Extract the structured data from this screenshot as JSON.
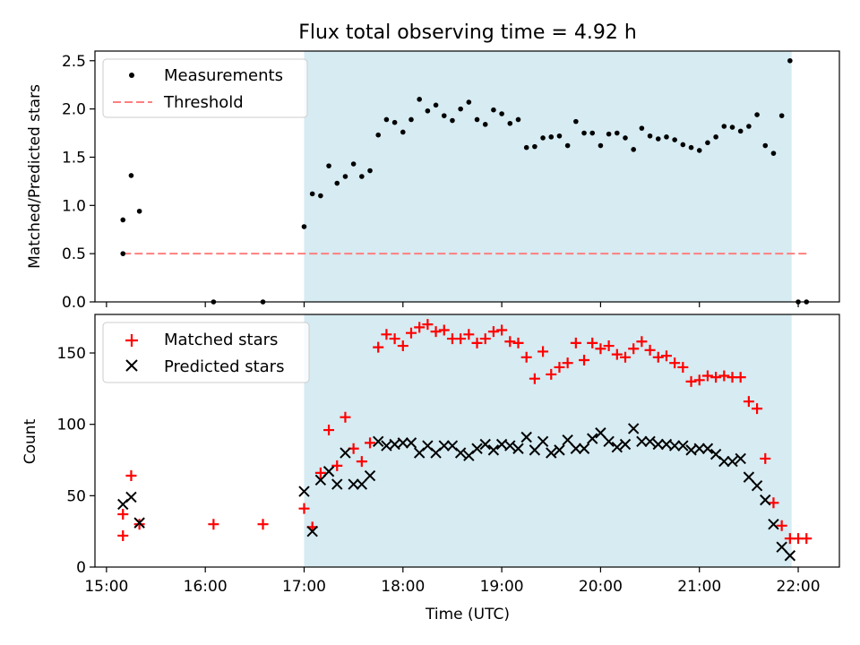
{
  "title": "Flux total observing time = 4.92 h",
  "shaded_color": "#add8e6",
  "chart_data": [
    {
      "type": "scatter",
      "ylabel": "Matched/Predicted stars",
      "ylim": [
        0,
        2.6
      ],
      "yticks": [
        0,
        0.5,
        1.0,
        1.5,
        2.0,
        2.5
      ],
      "ytick_labels": [
        "0.0",
        "0.5",
        "1.0",
        "1.5",
        "2.0",
        "2.5"
      ],
      "xlim": [
        "14:53",
        "22:25"
      ],
      "shaded_interval": [
        "17:00",
        "21:56"
      ],
      "legend": {
        "position": "top-left",
        "entries": [
          "Measurements",
          "Threshold"
        ]
      },
      "threshold": {
        "name": "Threshold",
        "value": 0.5,
        "x_range": [
          "15:10",
          "22:05"
        ],
        "color": "#ff7f7f",
        "style": "dashed"
      },
      "series": [
        {
          "name": "Measurements",
          "color": "#000000",
          "marker": "dot",
          "x": [
            "15:10",
            "15:10",
            "15:15",
            "15:20",
            "16:05",
            "16:35",
            "17:00",
            "17:05",
            "17:10",
            "17:15",
            "17:20",
            "17:25",
            "17:30",
            "17:35",
            "17:40",
            "17:45",
            "17:50",
            "17:55",
            "18:00",
            "18:05",
            "18:10",
            "18:15",
            "18:20",
            "18:25",
            "18:30",
            "18:35",
            "18:40",
            "18:45",
            "18:50",
            "18:55",
            "19:00",
            "19:05",
            "19:10",
            "19:15",
            "19:20",
            "19:25",
            "19:30",
            "19:35",
            "19:40",
            "19:45",
            "19:50",
            "19:55",
            "20:00",
            "20:05",
            "20:10",
            "20:15",
            "20:20",
            "20:25",
            "20:30",
            "20:35",
            "20:40",
            "20:45",
            "20:50",
            "20:55",
            "21:00",
            "21:05",
            "21:10",
            "21:15",
            "21:20",
            "21:25",
            "21:30",
            "21:35",
            "21:40",
            "21:45",
            "21:50",
            "21:55",
            "22:00",
            "22:05"
          ],
          "y": [
            0.85,
            0.5,
            1.31,
            0.94,
            0.0,
            0.0,
            0.78,
            1.12,
            1.1,
            1.41,
            1.23,
            1.3,
            1.43,
            1.3,
            1.36,
            1.73,
            1.89,
            1.86,
            1.76,
            1.89,
            2.1,
            1.98,
            2.04,
            1.93,
            1.88,
            2.0,
            2.07,
            1.89,
            1.84,
            1.99,
            1.95,
            1.85,
            1.89,
            1.6,
            1.61,
            1.7,
            1.71,
            1.72,
            1.62,
            1.87,
            1.75,
            1.75,
            1.62,
            1.74,
            1.75,
            1.7,
            1.58,
            1.8,
            1.72,
            1.69,
            1.71,
            1.68,
            1.63,
            1.6,
            1.57,
            1.65,
            1.71,
            1.82,
            1.81,
            1.77,
            1.82,
            1.94,
            1.62,
            1.54,
            1.93,
            2.5,
            0.0,
            0.0
          ]
        }
      ]
    },
    {
      "type": "scatter",
      "xlabel": "Time (UTC)",
      "ylabel": "Count",
      "ylim": [
        0,
        177
      ],
      "yticks": [
        0,
        50,
        100,
        150
      ],
      "ytick_labels": [
        "0",
        "50",
        "100",
        "150"
      ],
      "xlim": [
        "14:53",
        "22:25"
      ],
      "xticks": [
        "15:00",
        "16:00",
        "17:00",
        "18:00",
        "19:00",
        "20:00",
        "21:00",
        "22:00"
      ],
      "shaded_interval": [
        "17:00",
        "21:56"
      ],
      "legend": {
        "position": "top-left",
        "entries": [
          "Matched stars",
          "Predicted stars"
        ]
      },
      "series": [
        {
          "name": "Matched stars",
          "color": "#ff0000",
          "marker": "plus",
          "x": [
            "15:10",
            "15:10",
            "15:15",
            "15:20",
            "16:05",
            "16:35",
            "17:00",
            "17:05",
            "17:10",
            "17:15",
            "17:20",
            "17:25",
            "17:30",
            "17:35",
            "17:40",
            "17:45",
            "17:50",
            "17:55",
            "18:00",
            "18:05",
            "18:10",
            "18:15",
            "18:20",
            "18:25",
            "18:30",
            "18:35",
            "18:40",
            "18:45",
            "18:50",
            "18:55",
            "19:00",
            "19:05",
            "19:10",
            "19:15",
            "19:20",
            "19:25",
            "19:30",
            "19:35",
            "19:40",
            "19:45",
            "19:50",
            "19:55",
            "20:00",
            "20:05",
            "20:10",
            "20:15",
            "20:20",
            "20:25",
            "20:30",
            "20:35",
            "20:40",
            "20:45",
            "20:50",
            "20:55",
            "21:00",
            "21:05",
            "21:10",
            "21:15",
            "21:20",
            "21:25",
            "21:30",
            "21:35",
            "21:40",
            "21:45",
            "21:50",
            "21:55",
            "22:00",
            "22:05"
          ],
          "y": [
            22,
            37,
            64,
            30,
            30,
            30,
            41,
            28,
            66,
            96,
            71,
            105,
            83,
            74,
            87,
            154,
            163,
            160,
            155,
            164,
            168,
            170,
            165,
            166,
            160,
            160,
            163,
            157,
            160,
            165,
            166,
            158,
            157,
            147,
            132,
            151,
            135,
            140,
            143,
            157,
            145,
            157,
            153,
            155,
            149,
            147,
            153,
            158,
            152,
            147,
            148,
            143,
            140,
            130,
            131,
            134,
            133,
            134,
            133,
            133,
            116,
            111,
            76,
            45,
            29,
            20,
            20,
            20
          ]
        },
        {
          "name": "Predicted stars",
          "color": "#000000",
          "marker": "x",
          "x": [
            "15:10",
            "15:15",
            "15:20",
            "17:00",
            "17:05",
            "17:10",
            "17:15",
            "17:20",
            "17:25",
            "17:30",
            "17:35",
            "17:40",
            "17:45",
            "17:50",
            "17:55",
            "18:00",
            "18:05",
            "18:10",
            "18:15",
            "18:20",
            "18:25",
            "18:30",
            "18:35",
            "18:40",
            "18:45",
            "18:50",
            "18:55",
            "19:00",
            "19:05",
            "19:10",
            "19:15",
            "19:20",
            "19:25",
            "19:30",
            "19:35",
            "19:40",
            "19:45",
            "19:50",
            "19:55",
            "20:00",
            "20:05",
            "20:10",
            "20:15",
            "20:20",
            "20:25",
            "20:30",
            "20:35",
            "20:40",
            "20:45",
            "20:50",
            "20:55",
            "21:00",
            "21:05",
            "21:10",
            "21:15",
            "21:20",
            "21:25",
            "21:30",
            "21:35",
            "21:40",
            "21:45",
            "21:50",
            "21:55"
          ],
          "y": [
            44,
            49,
            31,
            53,
            25,
            61,
            67,
            58,
            80,
            58,
            58,
            64,
            88,
            85,
            86,
            87,
            87,
            80,
            85,
            80,
            85,
            85,
            80,
            78,
            83,
            86,
            82,
            86,
            85,
            83,
            91,
            82,
            88,
            80,
            82,
            89,
            83,
            83,
            90,
            94,
            88,
            84,
            86,
            97,
            88,
            88,
            86,
            86,
            85,
            85,
            82,
            83,
            83,
            79,
            74,
            74,
            76,
            63,
            57,
            47,
            30,
            14,
            8
          ]
        }
      ]
    }
  ]
}
